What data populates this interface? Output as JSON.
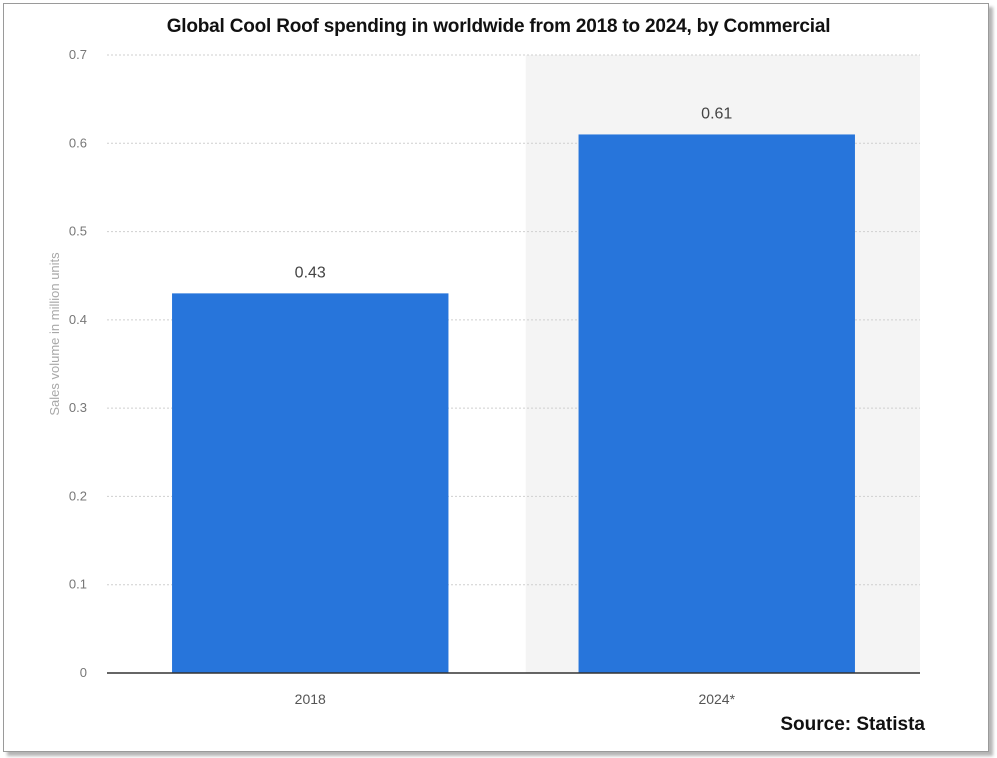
{
  "chart_data": {
    "type": "bar",
    "title": "Global Cool Roof spending in worldwide from 2018 to 2024, by Commercial",
    "xlabel": "",
    "ylabel": "Sales volume in million units",
    "categories": [
      "2018",
      "2024*"
    ],
    "values": [
      0.43,
      0.61
    ],
    "data_labels": [
      "0.43",
      "0.61"
    ],
    "yticks": [
      "0",
      "0.1",
      "0.2",
      "0.3",
      "0.4",
      "0.5",
      "0.6",
      "0.7"
    ],
    "ylim": [
      0,
      0.7
    ],
    "grid": true,
    "bar_color": "#2775db",
    "highlight_background": "#f4f4f4"
  },
  "source_text": "Source: Statista"
}
